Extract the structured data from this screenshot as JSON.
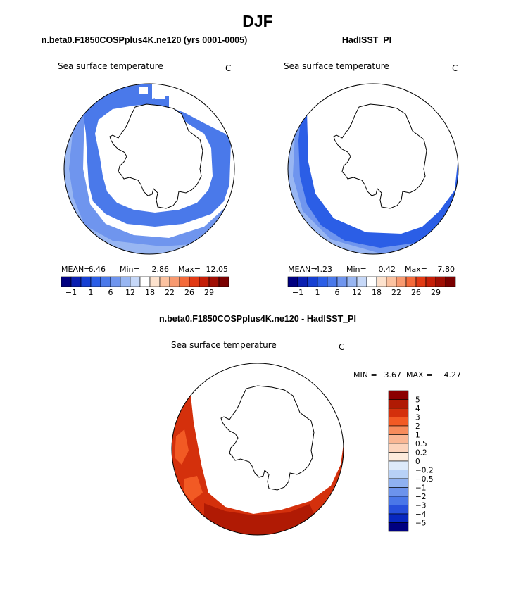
{
  "page": {
    "title": "DJF",
    "colors": {
      "land_fill": "#ffffff",
      "coast": "#000000"
    }
  },
  "chart_data": [
    {
      "type": "map",
      "title": "n.beta0.F1850COSPplus4K.ne120 (yrs 0001-0005)",
      "variable": "Sea surface temperature",
      "units": "C",
      "stats": {
        "mean_label": "MEAN=",
        "mean": "6.46",
        "min_label": "Min=",
        "min": "2.86",
        "max_label": "Max=",
        "max": "12.05"
      },
      "colorbar": {
        "colors": [
          "#000080",
          "#0a1fb0",
          "#1640d2",
          "#2b5ee6",
          "#4a79ea",
          "#6f95ee",
          "#98b6f2",
          "#c6d8f8",
          "#ffffff",
          "#fde2cd",
          "#fbc2a0",
          "#f89a70",
          "#f46a3a",
          "#e23a14",
          "#c51f08",
          "#a00f04",
          "#7a0000"
        ],
        "tick_labels": [
          "−1",
          "1",
          "6",
          "12",
          "18",
          "22",
          "26",
          "29"
        ]
      },
      "regions_shown": [
        "4-6 C band",
        "6-8 C band",
        "8-12 C band"
      ]
    },
    {
      "type": "map",
      "title": "HadISST_PI",
      "variable": "Sea surface temperature",
      "units": "C",
      "stats": {
        "mean_label": "MEAN=",
        "mean": "4.23",
        "min_label": "Min=",
        "min": "0.42",
        "max_label": "Max=",
        "max": "7.80"
      },
      "colorbar": {
        "colors": [
          "#000080",
          "#0a1fb0",
          "#1640d2",
          "#2b5ee6",
          "#4a79ea",
          "#6f95ee",
          "#98b6f2",
          "#c6d8f8",
          "#ffffff",
          "#fde2cd",
          "#fbc2a0",
          "#f89a70",
          "#f46a3a",
          "#e23a14",
          "#c51f08",
          "#a00f04",
          "#7a0000"
        ],
        "tick_labels": [
          "−1",
          "1",
          "6",
          "12",
          "18",
          "22",
          "26",
          "29"
        ]
      },
      "regions_shown": [
        "0-2 C band",
        "2-6 C band",
        "6-8 C band"
      ]
    },
    {
      "type": "map",
      "title": "n.beta0.F1850COSPplus4K.ne120 - HadISST_PI",
      "variable": "Sea surface temperature",
      "units": "C",
      "stats": {
        "min_label": "MIN =",
        "min": "3.67",
        "max_label": "MAX =",
        "max": "4.27"
      },
      "colorbar": {
        "levels": [
          "5",
          "4",
          "3",
          "2",
          "1",
          "0.5",
          "0.2",
          "0",
          "−0.2",
          "−0.5",
          "−1",
          "−2",
          "−3",
          "−4",
          "−5"
        ],
        "colors": [
          "#8b0000",
          "#b01a04",
          "#d4300c",
          "#f25a24",
          "#f78c5c",
          "#fab693",
          "#fcd3bb",
          "#fdebdc",
          "#ddeafa",
          "#b8d1f6",
          "#8fb1f1",
          "#6c93ec",
          "#4a77e8",
          "#2750dc",
          "#0828c0",
          "#000080"
        ]
      },
      "regions_shown": [
        "3-4 C difference band"
      ]
    }
  ]
}
